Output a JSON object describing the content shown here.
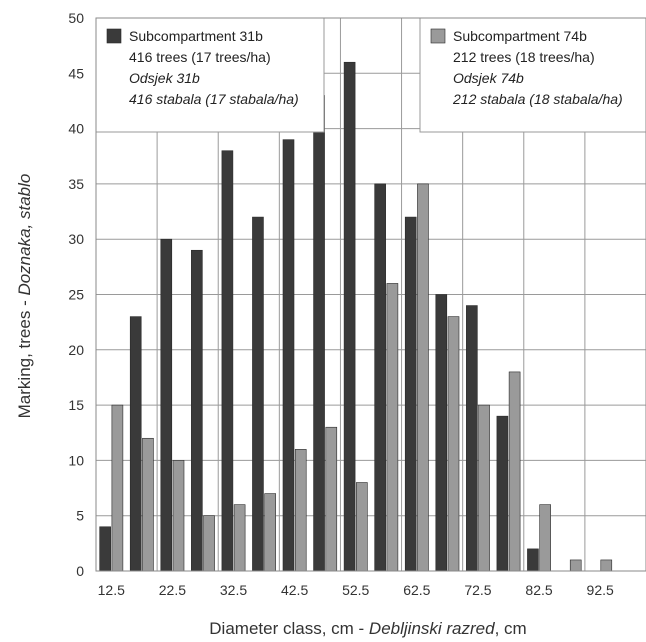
{
  "chart_data": {
    "type": "bar",
    "categories": [
      "12.5",
      "17.5",
      "22.5",
      "27.5",
      "32.5",
      "37.5",
      "42.5",
      "47.5",
      "52.5",
      "57.5",
      "62.5",
      "67.5",
      "72.5",
      "77.5",
      "82.5",
      "87.5",
      "92.5",
      "97.5"
    ],
    "x_tick_labels": [
      "12.5",
      "22.5",
      "32.5",
      "42.5",
      "52.5",
      "62.5",
      "72.5",
      "82.5",
      "92.5"
    ],
    "y_ticks": [
      "0",
      "5",
      "10",
      "15",
      "20",
      "25",
      "30",
      "35",
      "40",
      "45",
      "50"
    ],
    "series": [
      {
        "name": "Subcompartment 31b",
        "color": "#3a3a3a",
        "values": [
          4,
          23,
          30,
          29,
          38,
          32,
          39,
          43,
          46,
          35,
          32,
          25,
          24,
          14,
          2,
          0,
          0,
          0
        ]
      },
      {
        "name": "Subcompartment 74b",
        "color": "#9a9a9a",
        "values": [
          15,
          12,
          10,
          5,
          6,
          7,
          11,
          13,
          8,
          26,
          35,
          23,
          15,
          18,
          6,
          1,
          1,
          0
        ]
      }
    ],
    "ylim": [
      0,
      50
    ],
    "xlabel_plain": "Diameter class, cm - ",
    "xlabel_italic": "Debljinski razred",
    "xlabel_suffix": ", cm",
    "ylabel_plain": "Marking, trees - ",
    "ylabel_italic": "Doznaka, stablo",
    "grid": true,
    "legend": [
      {
        "position": "top-left",
        "lines": [
          "Subcompartment 31b",
          "416 trees (17 trees/ha)",
          "Odsjek 31b",
          "416 stabala (17 stabala/ha)"
        ]
      },
      {
        "position": "top-right",
        "lines": [
          "Subcompartment 74b",
          "212 trees (18 trees/ha)",
          "Odsjek 74b",
          "212 stabala (18 stabala/ha)"
        ]
      }
    ]
  }
}
